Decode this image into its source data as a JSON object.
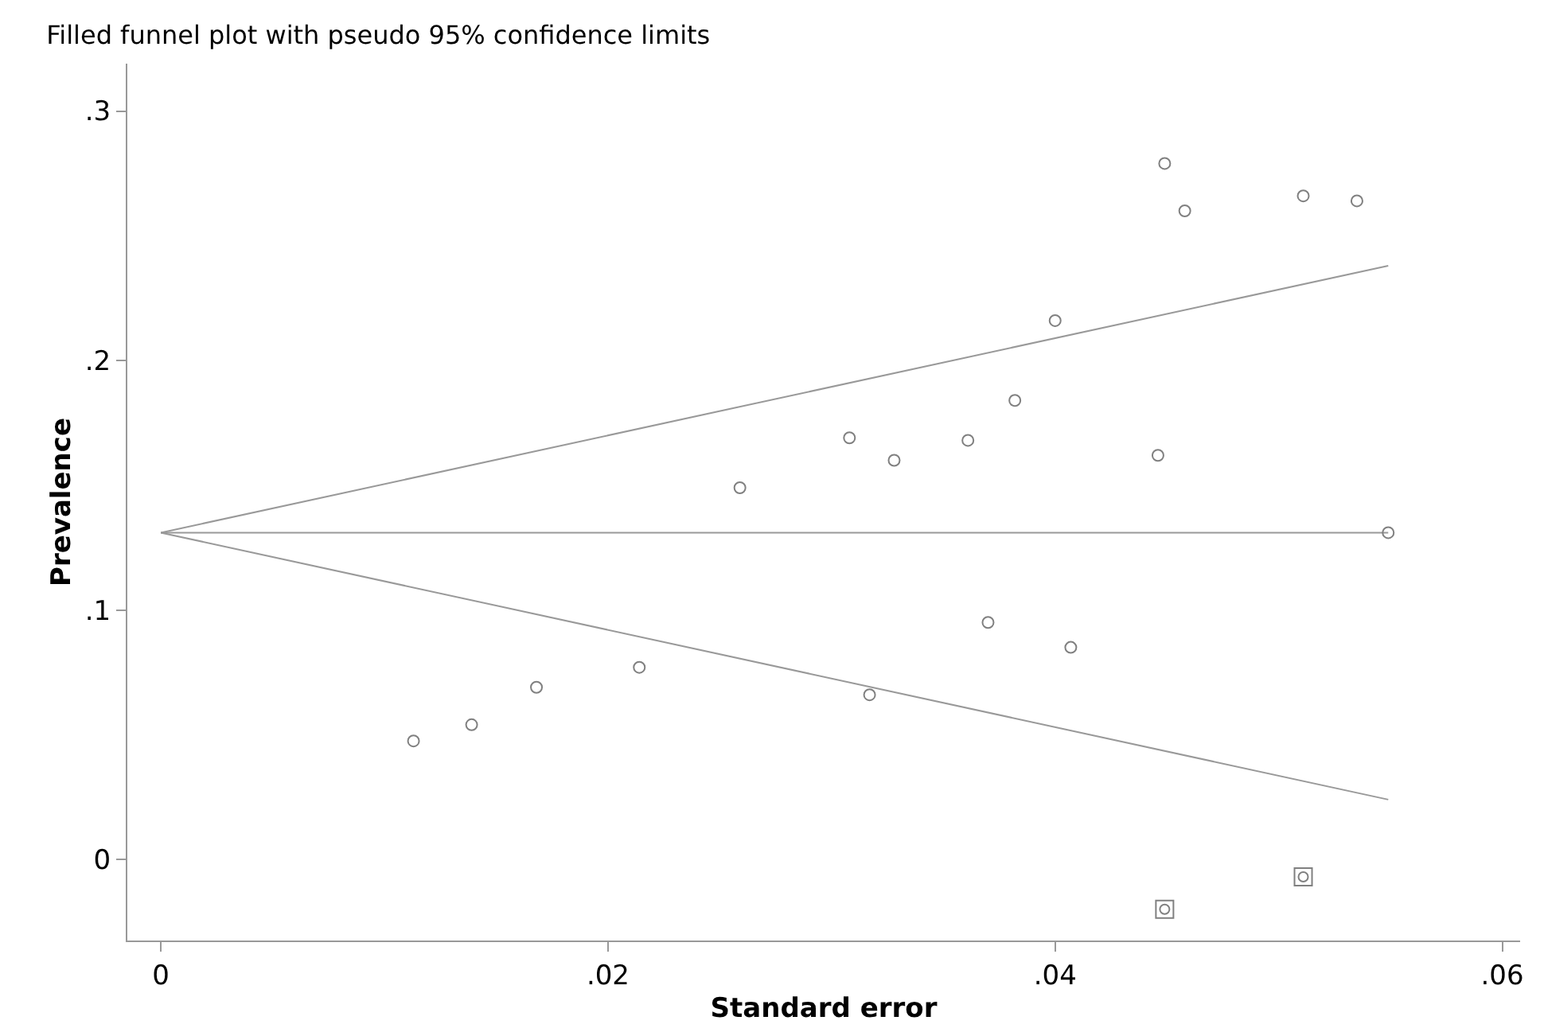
{
  "chart_data": {
    "type": "scatter",
    "title": "Filled funnel plot with pseudo 95% confidence limits",
    "xlabel": "Standard error",
    "ylabel": "Prevalence",
    "xlim": [
      -0.0015,
      0.0608
    ],
    "xticks": [
      {
        "value": 0,
        "label": "0"
      },
      {
        "value": 0.02,
        "label": ".02"
      },
      {
        "value": 0.04,
        "label": ".04"
      },
      {
        "value": 0.06,
        "label": ".06"
      }
    ],
    "ylim": [
      -0.0325,
      0.319
    ],
    "yticks": [
      {
        "value": 0,
        "label": "0"
      },
      {
        "value": 0.1,
        "label": ".1"
      },
      {
        "value": 0.2,
        "label": ".2"
      },
      {
        "value": 0.3,
        "label": ".3"
      }
    ],
    "series": [
      {
        "marker": "circle",
        "color": "#808080",
        "x": [
          0.0113,
          0.0139,
          0.0168,
          0.0214,
          0.0259,
          0.0308,
          0.0317,
          0.0328,
          0.0361,
          0.037,
          0.0382,
          0.04,
          0.0407,
          0.0446,
          0.0449,
          0.0458,
          0.0511,
          0.0535,
          0.0549
        ],
        "values": [
          0.0475,
          0.054,
          0.069,
          0.077,
          0.149,
          0.169,
          0.066,
          0.16,
          0.168,
          0.095,
          0.184,
          0.216,
          0.085,
          0.162,
          0.279,
          0.26,
          0.266,
          0.264,
          0.131
        ]
      },
      {
        "marker": "square",
        "color": "#808080",
        "x": [
          0.0449,
          0.0511
        ],
        "values": [
          -0.02,
          -0.007
        ]
      },
      {
        "type": "line",
        "marker": "none",
        "color": "#999999",
        "x": [
          0,
          0.0549
        ],
        "values": [
          0.131,
          0.238
        ]
      },
      {
        "type": "line",
        "marker": "none",
        "color": "#999999",
        "x": [
          0,
          0.0549
        ],
        "values": [
          0.131,
          0.131
        ]
      },
      {
        "type": "line",
        "marker": "none",
        "color": "#999999",
        "x": [
          0,
          0.0549
        ],
        "values": [
          0.131,
          0.024
        ]
      }
    ]
  }
}
